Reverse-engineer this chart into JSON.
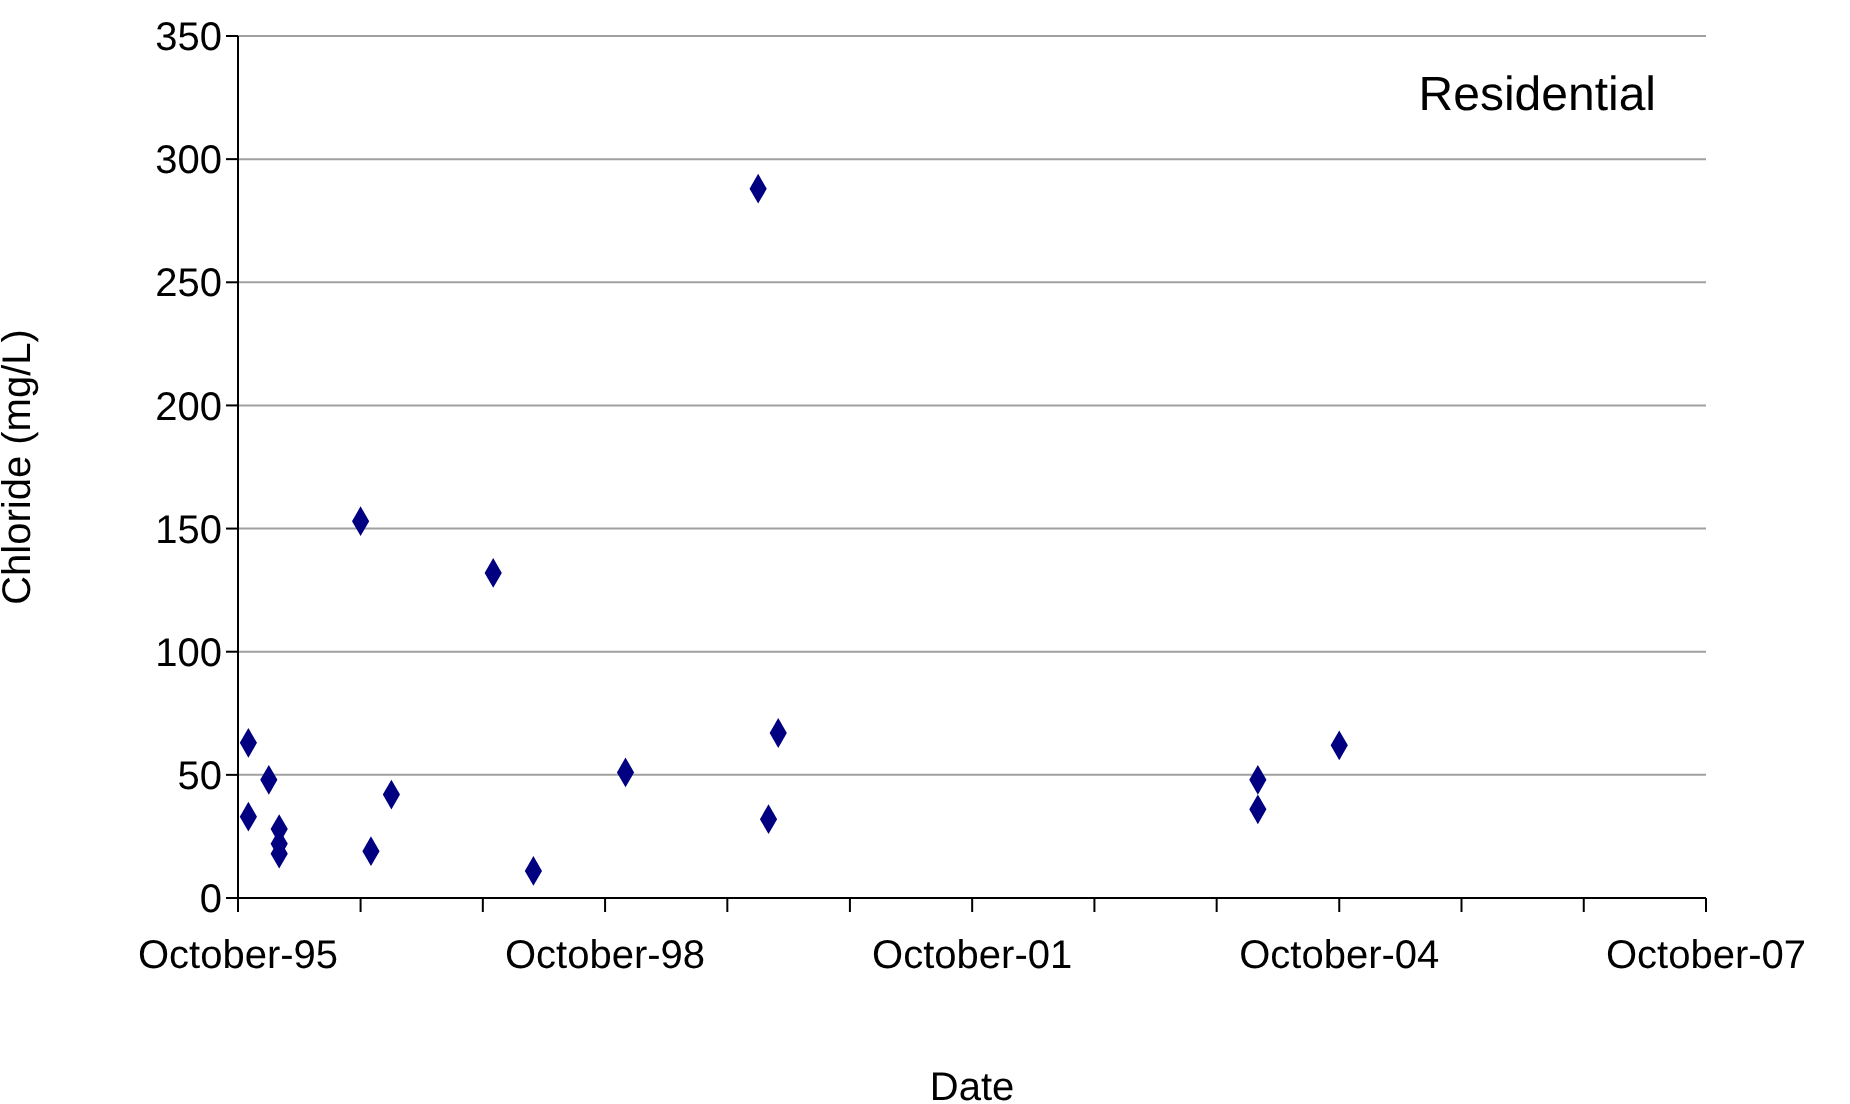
{
  "chart_data": {
    "type": "scatter",
    "xlabel": "Date",
    "ylabel": "Chloride (mg/L)",
    "annotations": [
      "Residential"
    ],
    "x": [
      "1995-11",
      "1995-11",
      "1996-01",
      "1996-02",
      "1996-02",
      "1996-02",
      "1996-10",
      "1996-11",
      "1997-01",
      "1997-11",
      "1998-03",
      "1998-12",
      "2000-01",
      "2000-02",
      "2000-03",
      "2004-02",
      "2004-02",
      "2004-10"
    ],
    "values": [
      63,
      33,
      48,
      28,
      22,
      18,
      153,
      19,
      42,
      132,
      11,
      51,
      288,
      32,
      67,
      48,
      36,
      62
    ],
    "color": "#000080",
    "marker": "diamond",
    "grid": "y",
    "legend": false,
    "xlim": [
      "1995-10",
      "2007-10"
    ],
    "xticks": [
      {
        "value": "1995-10",
        "label": "October-95"
      },
      {
        "value": "1996-10",
        "label": null
      },
      {
        "value": "1997-10",
        "label": null
      },
      {
        "value": "1998-10",
        "label": "October-98"
      },
      {
        "value": "1999-10",
        "label": null
      },
      {
        "value": "2000-10",
        "label": null
      },
      {
        "value": "2001-10",
        "label": "October-01"
      },
      {
        "value": "2002-10",
        "label": null
      },
      {
        "value": "2003-10",
        "label": null
      },
      {
        "value": "2004-10",
        "label": "October-04"
      },
      {
        "value": "2005-10",
        "label": null
      },
      {
        "value": "2006-10",
        "label": null
      },
      {
        "value": "2007-10",
        "label": "October-07"
      }
    ],
    "ylim": [
      0,
      350
    ],
    "yticks": [
      0,
      50,
      100,
      150,
      200,
      250,
      300,
      350
    ]
  }
}
